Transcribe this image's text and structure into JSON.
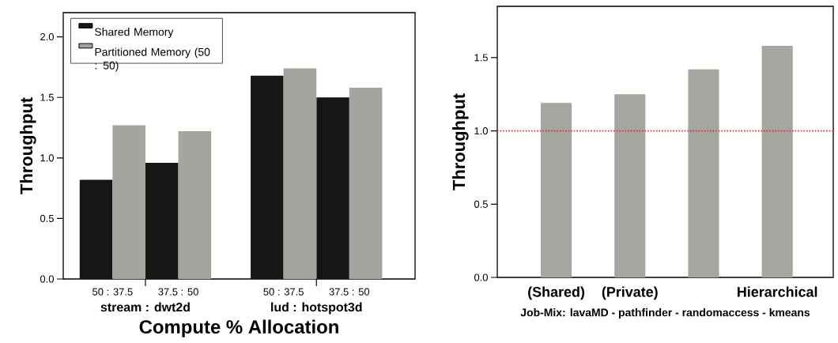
{
  "chart_data": [
    {
      "type": "bar",
      "ylabel": "Throughput",
      "xlabel": "Compute % Allocation",
      "categories": [
        "50 : 37.5",
        "37.5 : 50",
        "50 : 37.5",
        "37.5 : 50"
      ],
      "annotations": [
        "stream : dwt2d",
        "lud : hotspot3d"
      ],
      "series": [
        {
          "name": "Shared Memory",
          "color": "#161616",
          "values": [
            0.82,
            0.96,
            1.68,
            1.5
          ]
        },
        {
          "name": "Partitioned Memory (50 : 50)",
          "color": "#a5a5a0",
          "values": [
            1.27,
            1.22,
            1.74,
            1.58
          ]
        }
      ],
      "ylim": [
        0,
        2.2
      ],
      "yticks": [
        {
          "value": 0,
          "label": "0.0"
        },
        {
          "value": 0.5,
          "label": "0.5"
        },
        {
          "value": 1,
          "label": "1.0"
        },
        {
          "value": 1.5,
          "label": "1.5"
        },
        {
          "value": 2,
          "label": "2.0"
        }
      ],
      "legend": "top left"
    },
    {
      "type": "bar",
      "ylabel": "Throughput",
      "xlabel": "Job-Mix: lavaMD - pathfinder - randomaccess - kmeans",
      "categories": [
        "(Shared)",
        "(Private)",
        null,
        "Hierarchical"
      ],
      "values": [
        1.19,
        1.25,
        1.42,
        1.58
      ],
      "color": "#a5a6a0",
      "ylim": [
        0,
        1.85
      ],
      "yticks": [
        {
          "value": 0,
          "label": "0.0"
        },
        {
          "value": 0.5,
          "label": "0.5"
        },
        {
          "value": 1,
          "label": "1.0"
        },
        {
          "value": 1.5,
          "label": "1.5"
        }
      ],
      "ref_lines": [
        {
          "axis": "y",
          "value": 1.0,
          "color": "#e03020",
          "line_style": "dotted"
        }
      ]
    }
  ]
}
